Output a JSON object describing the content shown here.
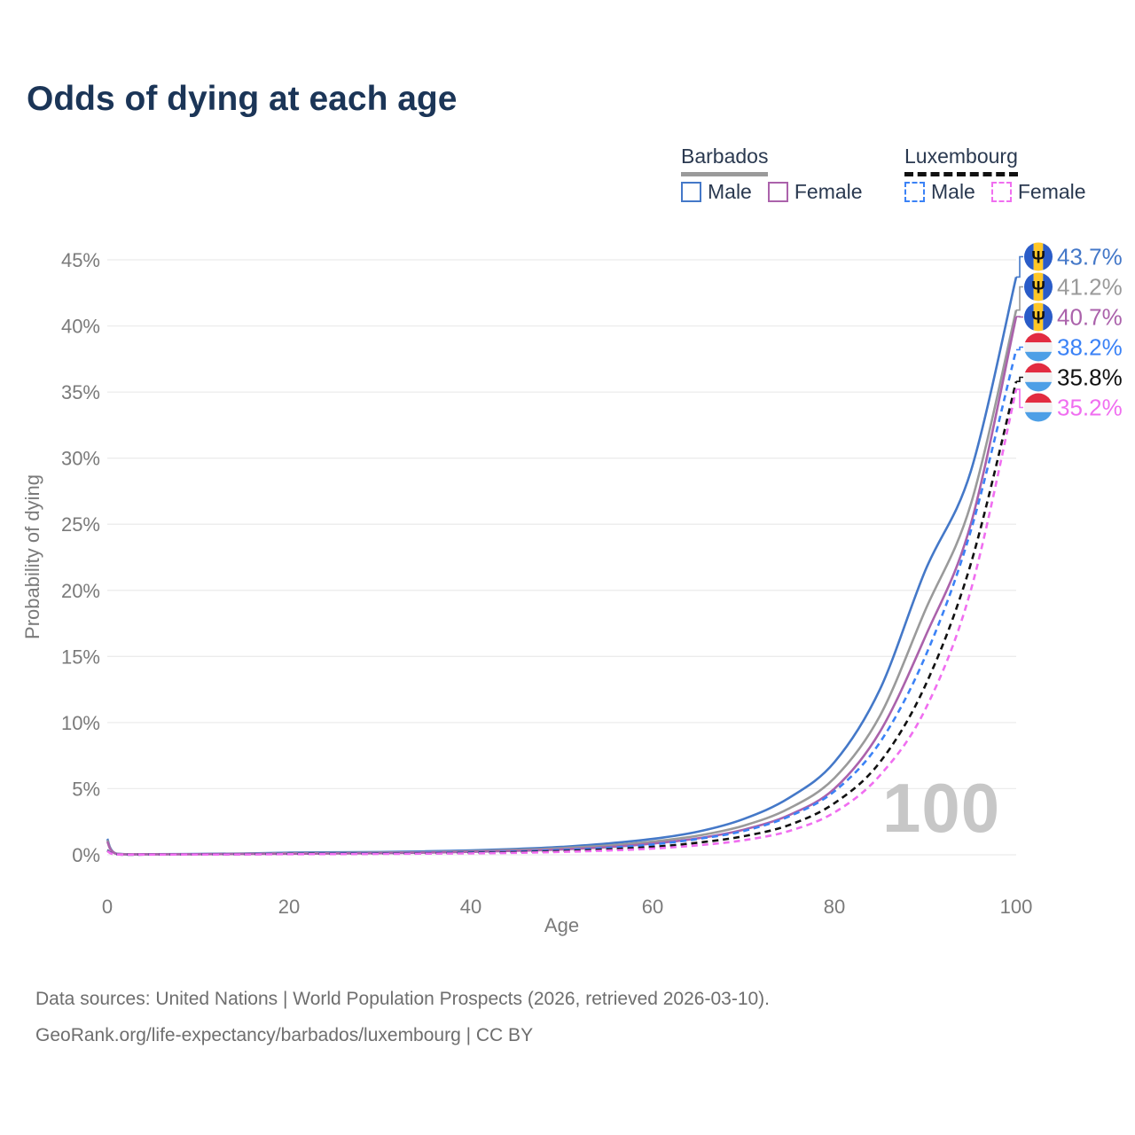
{
  "title": "Odds of dying at each age",
  "watermark_age_label": "100",
  "legend": {
    "groups": [
      {
        "id": "barbados",
        "label": "Barbados",
        "line_style": "solid",
        "line_color": "#9a9a9a",
        "items": [
          {
            "id": "male",
            "label": "Male",
            "color": "#4478c8"
          },
          {
            "id": "female",
            "label": "Female",
            "color": "#ab62ab"
          }
        ]
      },
      {
        "id": "luxembourg",
        "label": "Luxembourg",
        "line_style": "dashed",
        "line_color": "#111111",
        "items": [
          {
            "id": "male",
            "label": "Male",
            "color": "#3b82f6"
          },
          {
            "id": "female",
            "label": "Female",
            "color": "#f06ef0"
          }
        ]
      }
    ]
  },
  "footer": {
    "sources_line": "Data sources: United Nations | World Population Prospects (2026, retrieved 2026-03-10).",
    "attribution_line": "GeoRank.org/life-expectancy/barbados/luxembourg | CC BY"
  },
  "chart_data": {
    "type": "line",
    "title": "Odds of dying at each age",
    "xlabel": "Age",
    "ylabel": "Probability of dying",
    "xlim": [
      0,
      100
    ],
    "ylim_percent": [
      0,
      45
    ],
    "x_ticks": [
      0,
      20,
      40,
      60,
      80,
      100
    ],
    "y_ticks_percent": [
      0,
      5,
      10,
      15,
      20,
      25,
      30,
      35,
      40,
      45
    ],
    "grid": "horizontal",
    "legend_position": "top-right",
    "ages": [
      0,
      1,
      5,
      10,
      15,
      20,
      25,
      30,
      35,
      40,
      45,
      50,
      55,
      60,
      65,
      70,
      75,
      80,
      85,
      90,
      95,
      100
    ],
    "series": [
      {
        "id": "barbados-male",
        "name": "Barbados Male",
        "country": "Barbados",
        "sex": "Male",
        "color": "#4478c8",
        "dashed": false,
        "flag": "barbados",
        "end_label": "43.7%",
        "end_value_percent": 43.7,
        "values_percent": [
          1.2,
          0.09,
          0.05,
          0.06,
          0.1,
          0.16,
          0.19,
          0.21,
          0.26,
          0.33,
          0.44,
          0.6,
          0.85,
          1.2,
          1.75,
          2.7,
          4.3,
          7.0,
          12.5,
          21.5,
          29.0,
          43.7
        ]
      },
      {
        "id": "barbados-total",
        "name": "Barbados",
        "country": "Barbados",
        "sex": "Both",
        "color": "#9a9a9a",
        "dashed": false,
        "flag": "barbados",
        "end_label": "41.2%",
        "end_value_percent": 41.2,
        "values_percent": [
          1.1,
          0.08,
          0.045,
          0.05,
          0.08,
          0.12,
          0.14,
          0.16,
          0.2,
          0.27,
          0.36,
          0.5,
          0.7,
          1.0,
          1.45,
          2.2,
          3.5,
          5.8,
          10.5,
          18.5,
          26.5,
          41.2
        ]
      },
      {
        "id": "barbados-female",
        "name": "Barbados Female",
        "country": "Barbados",
        "sex": "Female",
        "color": "#ab62ab",
        "dashed": false,
        "flag": "barbados",
        "end_label": "40.7%",
        "end_value_percent": 40.7,
        "values_percent": [
          1.0,
          0.07,
          0.04,
          0.045,
          0.06,
          0.08,
          0.1,
          0.12,
          0.16,
          0.22,
          0.3,
          0.41,
          0.58,
          0.85,
          1.25,
          1.9,
          3.0,
          5.0,
          9.3,
          16.5,
          25.0,
          40.7
        ]
      },
      {
        "id": "luxembourg-male",
        "name": "Luxembourg Male",
        "country": "Luxembourg",
        "sex": "Male",
        "color": "#3b82f6",
        "dashed": true,
        "flag": "luxembourg",
        "end_label": "38.2%",
        "end_value_percent": 38.2,
        "values_percent": [
          0.35,
          0.03,
          0.02,
          0.03,
          0.05,
          0.08,
          0.1,
          0.11,
          0.14,
          0.18,
          0.25,
          0.36,
          0.52,
          0.78,
          1.2,
          1.8,
          2.9,
          4.8,
          8.5,
          15.0,
          24.5,
          38.2
        ]
      },
      {
        "id": "luxembourg-total",
        "name": "Luxembourg",
        "country": "Luxembourg",
        "sex": "Both",
        "color": "#111111",
        "dashed": true,
        "flag": "luxembourg",
        "end_label": "35.8%",
        "end_value_percent": 35.8,
        "values_percent": [
          0.32,
          0.025,
          0.018,
          0.025,
          0.04,
          0.06,
          0.075,
          0.085,
          0.11,
          0.14,
          0.2,
          0.28,
          0.41,
          0.6,
          0.92,
          1.4,
          2.25,
          3.9,
          7.0,
          12.8,
          22.0,
          35.8
        ]
      },
      {
        "id": "luxembourg-female",
        "name": "Luxembourg Female",
        "country": "Luxembourg",
        "sex": "Female",
        "color": "#f06ef0",
        "dashed": true,
        "flag": "luxembourg",
        "end_label": "35.2%",
        "end_value_percent": 35.2,
        "values_percent": [
          0.28,
          0.02,
          0.015,
          0.02,
          0.03,
          0.045,
          0.055,
          0.065,
          0.085,
          0.11,
          0.15,
          0.22,
          0.32,
          0.47,
          0.72,
          1.1,
          1.8,
          3.2,
          6.0,
          11.0,
          20.0,
          35.2
        ]
      }
    ],
    "flag_colors": {
      "barbados": {
        "blue": "#2a5cc8",
        "yellow": "#ffc726",
        "trident": "#111111",
        "trident_glyph": "Ψ"
      },
      "luxembourg": {
        "red": "#e22c41",
        "white": "#f2f2f2",
        "blue": "#4d9fe6"
      }
    },
    "axis_text_color": "#7a7a7a",
    "grid_color": "#ececec"
  }
}
